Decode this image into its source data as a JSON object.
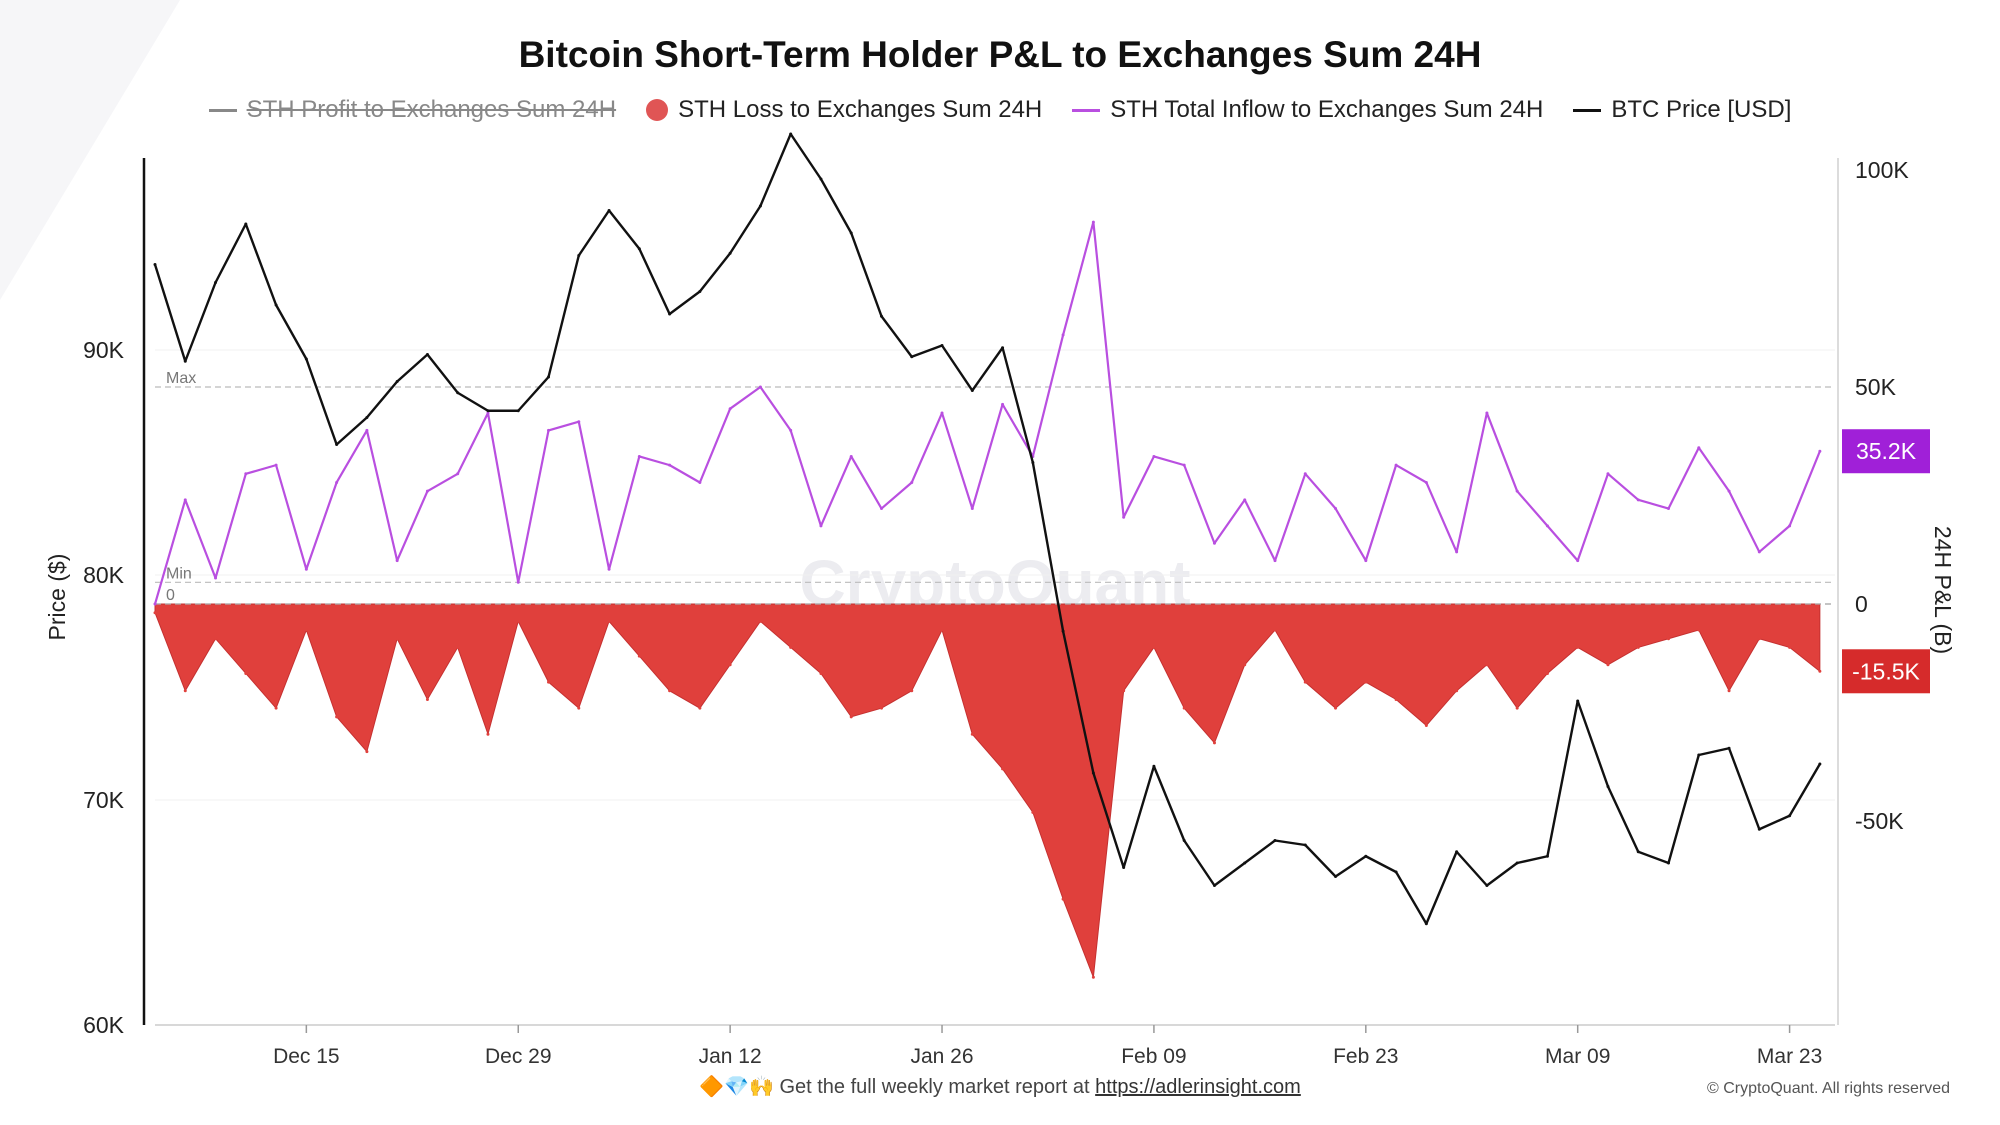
{
  "title": "Bitcoin Short-Term Holder P&L to Exchanges Sum 24H",
  "legend": [
    {
      "label": "STH Profit to Exchanges Sum 24H",
      "color": "#888888",
      "marker": "line",
      "disabled": true
    },
    {
      "label": "STH Loss to Exchanges Sum 24H",
      "color": "#e05555",
      "marker": "dot",
      "disabled": false
    },
    {
      "label": "STH Total Inflow to  Exchanges Sum 24H",
      "color": "#b94fe0",
      "marker": "line",
      "disabled": false
    },
    {
      "label": "BTC Price [USD]",
      "color": "#111111",
      "marker": "line",
      "disabled": false
    }
  ],
  "footer": {
    "icons": "🔶💎🙌",
    "text": "Get the full weekly market report at",
    "link": "https://adlerinsight.com"
  },
  "copyright": "© CryptoQuant. All rights reserved",
  "watermark": "CryptoQuant",
  "colors": {
    "loss": "#e0403c",
    "inflow": "#b94fe0",
    "price": "#111111",
    "inflow_badge": "#a020d8",
    "loss_badge": "#d62b2b"
  },
  "chart_data": {
    "type": "line",
    "x_range": [
      "2024-12-05",
      "2025-03-26"
    ],
    "x_ticks": [
      "Dec 15",
      "Dec 29",
      "Jan 12",
      "Jan 26",
      "Feb 09",
      "Feb 23",
      "Mar 09",
      "Mar 23"
    ],
    "y_left": {
      "label": "Price ($)",
      "ticks": [
        "60K",
        "70K",
        "80K",
        "90K"
      ],
      "range": [
        60000,
        98000
      ]
    },
    "y_right": {
      "label": "24H P&L (B)",
      "ticks": [
        "100K",
        "50K",
        "0",
        "-50K"
      ],
      "range": [
        -97000,
        100000
      ]
    },
    "reference_lines": [
      {
        "label": "Max",
        "value": 50000
      },
      {
        "label": "Min",
        "value": 5000
      },
      {
        "label": "0",
        "value": 0
      }
    ],
    "last_values": {
      "inflow": "35.2K",
      "loss": "-15.5K"
    },
    "series": [
      {
        "name": "BTC Price [USD]",
        "axis": "left",
        "color": "#111111",
        "x": [
          "2024-12-05",
          "2024-12-07",
          "2024-12-09",
          "2024-12-11",
          "2024-12-13",
          "2024-12-15",
          "2024-12-17",
          "2024-12-19",
          "2024-12-21",
          "2024-12-23",
          "2024-12-25",
          "2024-12-27",
          "2024-12-29",
          "2024-12-31",
          "2025-01-02",
          "2025-01-04",
          "2025-01-06",
          "2025-01-08",
          "2025-01-10",
          "2025-01-12",
          "2025-01-14",
          "2025-01-16",
          "2025-01-18",
          "2025-01-20",
          "2025-01-22",
          "2025-01-24",
          "2025-01-26",
          "2025-01-28",
          "2025-01-30",
          "2025-02-01",
          "2025-02-03",
          "2025-02-05",
          "2025-02-07",
          "2025-02-09",
          "2025-02-11",
          "2025-02-13",
          "2025-02-15",
          "2025-02-17",
          "2025-02-19",
          "2025-02-21",
          "2025-02-23",
          "2025-02-25",
          "2025-02-27",
          "2025-03-01",
          "2025-03-03",
          "2025-03-05",
          "2025-03-07",
          "2025-03-09",
          "2025-03-11",
          "2025-03-13",
          "2025-03-15",
          "2025-03-17",
          "2025-03-19",
          "2025-03-21",
          "2025-03-23",
          "2025-03-25"
        ],
        "y": [
          93800,
          89500,
          93000,
          95600,
          92000,
          89600,
          85800,
          87000,
          88600,
          89800,
          88100,
          87300,
          87300,
          88800,
          94200,
          96200,
          94500,
          91600,
          92600,
          94300,
          96400,
          99600,
          97600,
          95200,
          91500,
          89700,
          90200,
          88200,
          90100,
          85000,
          77500,
          71200,
          67000,
          71500,
          68200,
          66200,
          67200,
          68200,
          68000,
          66600,
          67500,
          66800,
          64500,
          67700,
          66200,
          67200,
          67500,
          74400,
          70600,
          67700,
          67200,
          72000,
          72300,
          68700,
          69300,
          71600
        ]
      },
      {
        "name": "STH Total Inflow to  Exchanges Sum 24H",
        "axis": "right",
        "color": "#b94fe0",
        "x": [
          "2024-12-05",
          "2024-12-07",
          "2024-12-09",
          "2024-12-11",
          "2024-12-13",
          "2024-12-15",
          "2024-12-17",
          "2024-12-19",
          "2024-12-21",
          "2024-12-23",
          "2024-12-25",
          "2024-12-27",
          "2024-12-29",
          "2024-12-31",
          "2025-01-02",
          "2025-01-04",
          "2025-01-06",
          "2025-01-08",
          "2025-01-10",
          "2025-01-12",
          "2025-01-14",
          "2025-01-16",
          "2025-01-18",
          "2025-01-20",
          "2025-01-22",
          "2025-01-24",
          "2025-01-26",
          "2025-01-28",
          "2025-01-30",
          "2025-02-01",
          "2025-02-03",
          "2025-02-05",
          "2025-02-07",
          "2025-02-09",
          "2025-02-11",
          "2025-02-13",
          "2025-02-15",
          "2025-02-17",
          "2025-02-19",
          "2025-02-21",
          "2025-02-23",
          "2025-02-25",
          "2025-02-27",
          "2025-03-01",
          "2025-03-03",
          "2025-03-05",
          "2025-03-07",
          "2025-03-09",
          "2025-03-11",
          "2025-03-13",
          "2025-03-15",
          "2025-03-17",
          "2025-03-19",
          "2025-03-21",
          "2025-03-23",
          "2025-03-25"
        ],
        "y": [
          0,
          24000,
          6000,
          30000,
          32000,
          8000,
          28000,
          40000,
          10000,
          26000,
          30000,
          44000,
          5000,
          40000,
          42000,
          8000,
          34000,
          32000,
          28000,
          45000,
          50000,
          40000,
          18000,
          34000,
          22000,
          28000,
          44000,
          22000,
          46000,
          34000,
          62000,
          88000,
          20000,
          34000,
          32000,
          14000,
          24000,
          10000,
          30000,
          22000,
          10000,
          32000,
          28000,
          12000,
          44000,
          26000,
          18000,
          10000,
          30000,
          24000,
          22000,
          36000,
          26000,
          12000,
          18000,
          35200
        ]
      },
      {
        "name": "STH Loss to Exchanges Sum 24H",
        "axis": "right",
        "color": "#e0403c",
        "x": [
          "2024-12-05",
          "2024-12-07",
          "2024-12-09",
          "2024-12-11",
          "2024-12-13",
          "2024-12-15",
          "2024-12-17",
          "2024-12-19",
          "2024-12-21",
          "2024-12-23",
          "2024-12-25",
          "2024-12-27",
          "2024-12-29",
          "2024-12-31",
          "2025-01-02",
          "2025-01-04",
          "2025-01-06",
          "2025-01-08",
          "2025-01-10",
          "2025-01-12",
          "2025-01-14",
          "2025-01-16",
          "2025-01-18",
          "2025-01-20",
          "2025-01-22",
          "2025-01-24",
          "2025-01-26",
          "2025-01-28",
          "2025-01-30",
          "2025-02-01",
          "2025-02-03",
          "2025-02-05",
          "2025-02-07",
          "2025-02-09",
          "2025-02-11",
          "2025-02-13",
          "2025-02-15",
          "2025-02-17",
          "2025-02-19",
          "2025-02-21",
          "2025-02-23",
          "2025-02-25",
          "2025-02-27",
          "2025-03-01",
          "2025-03-03",
          "2025-03-05",
          "2025-03-07",
          "2025-03-09",
          "2025-03-11",
          "2025-03-13",
          "2025-03-15",
          "2025-03-17",
          "2025-03-19",
          "2025-03-21",
          "2025-03-23",
          "2025-03-25"
        ],
        "y": [
          -2000,
          -20000,
          -8000,
          -16000,
          -24000,
          -6000,
          -26000,
          -34000,
          -8000,
          -22000,
          -10000,
          -30000,
          -4000,
          -18000,
          -24000,
          -4000,
          -12000,
          -20000,
          -24000,
          -14000,
          -4000,
          -10000,
          -16000,
          -26000,
          -24000,
          -20000,
          -6000,
          -30000,
          -38000,
          -48000,
          -68000,
          -86000,
          -20000,
          -10000,
          -24000,
          -32000,
          -14000,
          -6000,
          -18000,
          -24000,
          -18000,
          -22000,
          -28000,
          -20000,
          -14000,
          -24000,
          -16000,
          -10000,
          -14000,
          -10000,
          -8000,
          -6000,
          -20000,
          -8000,
          -10000,
          -15500
        ]
      }
    ]
  }
}
